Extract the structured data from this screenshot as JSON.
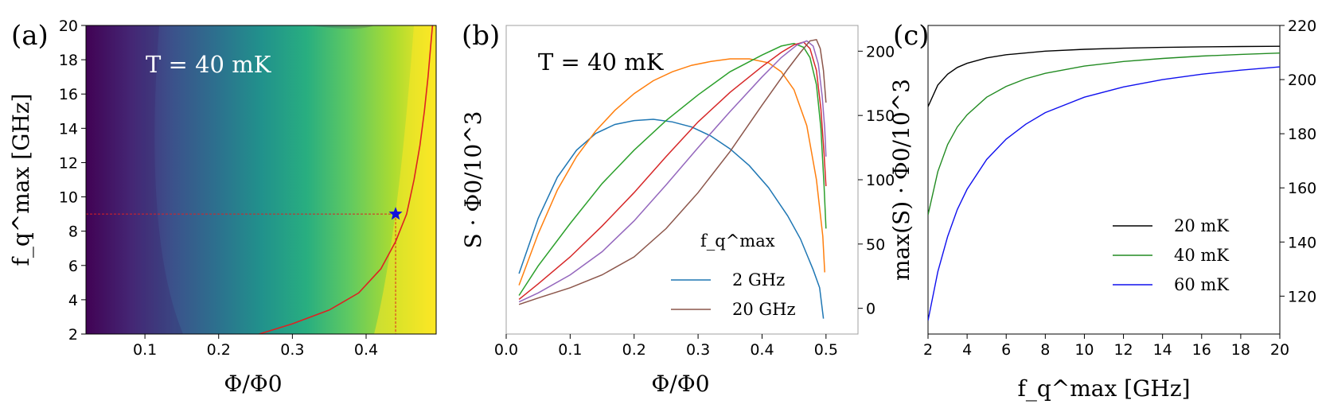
{
  "chart_data": [
    {
      "panel": "(a)",
      "type": "heatmap",
      "annotation": "T = 40 mK",
      "xlabel": "Φ/Φ0",
      "ylabel": "f_q^max [GHz]",
      "xlim": [
        0.02,
        0.495
      ],
      "ylim": [
        2,
        20
      ],
      "xticks": [
        "0.1",
        "0.2",
        "0.3",
        "0.4"
      ],
      "yticks": [
        "2",
        "4",
        "6",
        "8",
        "10",
        "12",
        "14",
        "16",
        "18",
        "20"
      ],
      "colormap": "viridis",
      "max_curve": [
        [
          0.255,
          2.0
        ],
        [
          0.3,
          2.6
        ],
        [
          0.35,
          3.4
        ],
        [
          0.39,
          4.4
        ],
        [
          0.42,
          5.8
        ],
        [
          0.44,
          7.4
        ],
        [
          0.455,
          9.0
        ],
        [
          0.465,
          11.0
        ],
        [
          0.473,
          13.0
        ],
        [
          0.479,
          15.0
        ],
        [
          0.484,
          17.0
        ],
        [
          0.488,
          19.0
        ],
        [
          0.49,
          20.0
        ]
      ],
      "marker": {
        "x": 0.44,
        "y": 9.0,
        "symbol": "star",
        "color": "#1010dd"
      },
      "curve_color": "#dd2222"
    },
    {
      "panel": "(b)",
      "type": "line",
      "annotation": "T = 40 mK",
      "xlabel": "Φ/Φ0",
      "ylabel": "S · Φ0/10^3",
      "xlim": [
        0.0,
        0.55
      ],
      "ylim": [
        -20,
        220
      ],
      "xticks": [
        "0.0",
        "0.1",
        "0.2",
        "0.3",
        "0.4",
        "0.5"
      ],
      "yticks": [
        "0",
        "50",
        "100",
        "150",
        "200"
      ],
      "legend_title": "f_q^max",
      "legend": [
        {
          "label": "2 GHz",
          "color": "#1f77b4"
        },
        {
          "label": "20 GHz",
          "color": "#8c564b"
        }
      ],
      "series": [
        {
          "color": "#1f77b4",
          "points": [
            [
              0.02,
              27
            ],
            [
              0.05,
              70
            ],
            [
              0.08,
              102
            ],
            [
              0.11,
              123
            ],
            [
              0.14,
              136
            ],
            [
              0.17,
              143
            ],
            [
              0.2,
              146
            ],
            [
              0.23,
              147
            ],
            [
              0.26,
              145
            ],
            [
              0.29,
              141
            ],
            [
              0.32,
              134
            ],
            [
              0.35,
              124
            ],
            [
              0.38,
              111
            ],
            [
              0.41,
              94
            ],
            [
              0.44,
              72
            ],
            [
              0.46,
              54
            ],
            [
              0.48,
              30
            ],
            [
              0.49,
              16
            ],
            [
              0.496,
              -8
            ]
          ]
        },
        {
          "color": "#ff7f0e",
          "points": [
            [
              0.02,
              18
            ],
            [
              0.05,
              58
            ],
            [
              0.08,
              92
            ],
            [
              0.11,
              118
            ],
            [
              0.14,
              138
            ],
            [
              0.17,
              154
            ],
            [
              0.2,
              167
            ],
            [
              0.23,
              177
            ],
            [
              0.26,
              184
            ],
            [
              0.29,
              189
            ],
            [
              0.32,
              192
            ],
            [
              0.35,
              194
            ],
            [
              0.38,
              194
            ],
            [
              0.41,
              191
            ],
            [
              0.43,
              184
            ],
            [
              0.45,
              170
            ],
            [
              0.47,
              142
            ],
            [
              0.485,
              100
            ],
            [
              0.495,
              56
            ],
            [
              0.498,
              28
            ]
          ]
        },
        {
          "color": "#2ca02c",
          "points": [
            [
              0.02,
              10
            ],
            [
              0.05,
              33
            ],
            [
              0.1,
              66
            ],
            [
              0.15,
              97
            ],
            [
              0.2,
              123
            ],
            [
              0.25,
              146
            ],
            [
              0.3,
              166
            ],
            [
              0.35,
              184
            ],
            [
              0.4,
              197
            ],
            [
              0.43,
              204
            ],
            [
              0.45,
              206
            ],
            [
              0.465,
              203
            ],
            [
              0.475,
              195
            ],
            [
              0.485,
              174
            ],
            [
              0.492,
              140
            ],
            [
              0.497,
              95
            ],
            [
              0.5,
              62
            ]
          ]
        },
        {
          "color": "#d62728",
          "points": [
            [
              0.02,
              7
            ],
            [
              0.05,
              19
            ],
            [
              0.1,
              40
            ],
            [
              0.15,
              64
            ],
            [
              0.2,
              90
            ],
            [
              0.25,
              118
            ],
            [
              0.3,
              145
            ],
            [
              0.35,
              168
            ],
            [
              0.4,
              188
            ],
            [
              0.43,
              199
            ],
            [
              0.45,
              205
            ],
            [
              0.465,
              207
            ],
            [
              0.475,
              202
            ],
            [
              0.485,
              185
            ],
            [
              0.492,
              155
            ],
            [
              0.497,
              120
            ],
            [
              0.5,
              95
            ]
          ]
        },
        {
          "color": "#9467bd",
          "points": [
            [
              0.02,
              5
            ],
            [
              0.05,
              12
            ],
            [
              0.1,
              26
            ],
            [
              0.15,
              44
            ],
            [
              0.2,
              68
            ],
            [
              0.25,
              96
            ],
            [
              0.3,
              125
            ],
            [
              0.35,
              153
            ],
            [
              0.4,
              180
            ],
            [
              0.43,
              195
            ],
            [
              0.455,
              205
            ],
            [
              0.47,
              208
            ],
            [
              0.48,
              204
            ],
            [
              0.488,
              190
            ],
            [
              0.494,
              165
            ],
            [
              0.498,
              140
            ],
            [
              0.5,
              118
            ]
          ]
        },
        {
          "color": "#8c564b",
          "points": [
            [
              0.02,
              3
            ],
            [
              0.05,
              8
            ],
            [
              0.1,
              16
            ],
            [
              0.15,
              26
            ],
            [
              0.2,
              40
            ],
            [
              0.25,
              62
            ],
            [
              0.3,
              90
            ],
            [
              0.35,
              122
            ],
            [
              0.4,
              158
            ],
            [
              0.44,
              186
            ],
            [
              0.46,
              199
            ],
            [
              0.475,
              208
            ],
            [
              0.485,
              209
            ],
            [
              0.491,
              202
            ],
            [
              0.496,
              185
            ],
            [
              0.5,
              160
            ]
          ]
        }
      ]
    },
    {
      "panel": "(c)",
      "type": "line",
      "xlabel": "f_q^max [GHz]",
      "ylabel": "max(S) · Φ0/10^3",
      "xlim": [
        2,
        20
      ],
      "ylim": [
        106,
        220
      ],
      "xticks": [
        "2",
        "4",
        "6",
        "8",
        "10",
        "12",
        "14",
        "16",
        "18",
        "20"
      ],
      "yticks": [
        "120",
        "140",
        "160",
        "180",
        "200",
        "220"
      ],
      "legend": [
        {
          "label": "20 mK",
          "color": "#000000"
        },
        {
          "label": "40 mK",
          "color": "#228b22"
        },
        {
          "label": "60 mK",
          "color": "#1010ee"
        }
      ],
      "series": [
        {
          "name": "20 mK",
          "color": "#000000",
          "points": [
            [
              2,
              190
            ],
            [
              2.5,
              198
            ],
            [
              3,
              202
            ],
            [
              3.5,
              204.5
            ],
            [
              4,
              206
            ],
            [
              5,
              208
            ],
            [
              6,
              209.2
            ],
            [
              8,
              210.5
            ],
            [
              10,
              211.2
            ],
            [
              12,
              211.6
            ],
            [
              14,
              211.9
            ],
            [
              16,
              212.1
            ],
            [
              18,
              212.2
            ],
            [
              20,
              212.3
            ]
          ]
        },
        {
          "name": "40 mK",
          "color": "#228b22",
          "points": [
            [
              2,
              150
            ],
            [
              2.5,
              166
            ],
            [
              3,
              176
            ],
            [
              3.5,
              182.5
            ],
            [
              4,
              187
            ],
            [
              5,
              193.5
            ],
            [
              6,
              197.5
            ],
            [
              7,
              200.3
            ],
            [
              8,
              202.3
            ],
            [
              10,
              205
            ],
            [
              12,
              206.7
            ],
            [
              14,
              207.8
            ],
            [
              16,
              208.7
            ],
            [
              18,
              209.3
            ],
            [
              20,
              209.8
            ]
          ]
        },
        {
          "name": "60 mK",
          "color": "#1010ee",
          "points": [
            [
              2,
              111
            ],
            [
              2.5,
              129
            ],
            [
              3,
              142
            ],
            [
              3.5,
              152
            ],
            [
              4,
              159.5
            ],
            [
              5,
              170.5
            ],
            [
              6,
              178
            ],
            [
              7,
              183.5
            ],
            [
              8,
              187.8
            ],
            [
              10,
              193.5
            ],
            [
              12,
              197.3
            ],
            [
              14,
              200
            ],
            [
              16,
              202
            ],
            [
              18,
              203.5
            ],
            [
              20,
              204.7
            ]
          ]
        }
      ]
    }
  ]
}
